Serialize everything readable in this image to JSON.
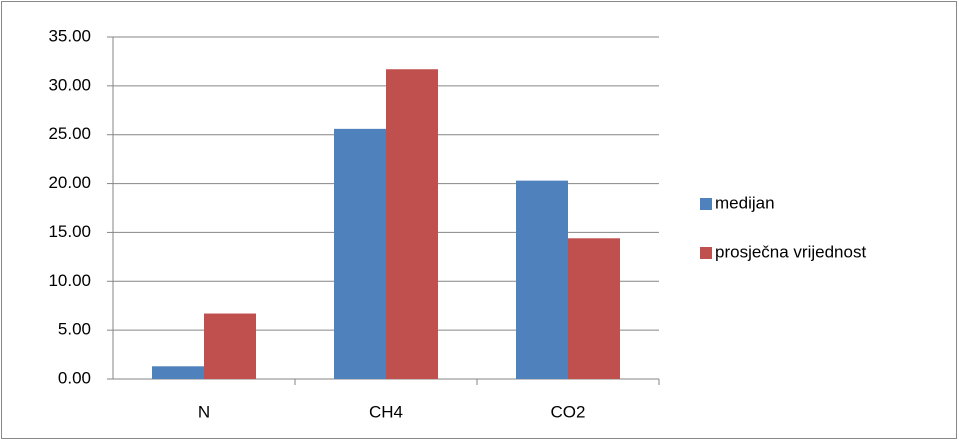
{
  "chart_data": {
    "type": "bar",
    "categories": [
      "N",
      "CH4",
      "CO2"
    ],
    "series": [
      {
        "name": "medijan",
        "color": "#4f81bd",
        "values": [
          1.3,
          25.6,
          20.3
        ]
      },
      {
        "name": "prosječna vrijednost",
        "color": "#c0504d",
        "values": [
          6.7,
          31.7,
          14.4
        ]
      }
    ],
    "ylim": [
      0,
      35
    ],
    "yticks": [
      {
        "value": 0,
        "label": "0.00"
      },
      {
        "value": 5,
        "label": "5.00"
      },
      {
        "value": 10,
        "label": "10.00"
      },
      {
        "value": 15,
        "label": "15.00"
      },
      {
        "value": 20,
        "label": "20.00"
      },
      {
        "value": 25,
        "label": "25.00"
      },
      {
        "value": 30,
        "label": "30.00"
      },
      {
        "value": 35,
        "label": "35.00"
      }
    ],
    "grid": true,
    "legend": "right"
  }
}
